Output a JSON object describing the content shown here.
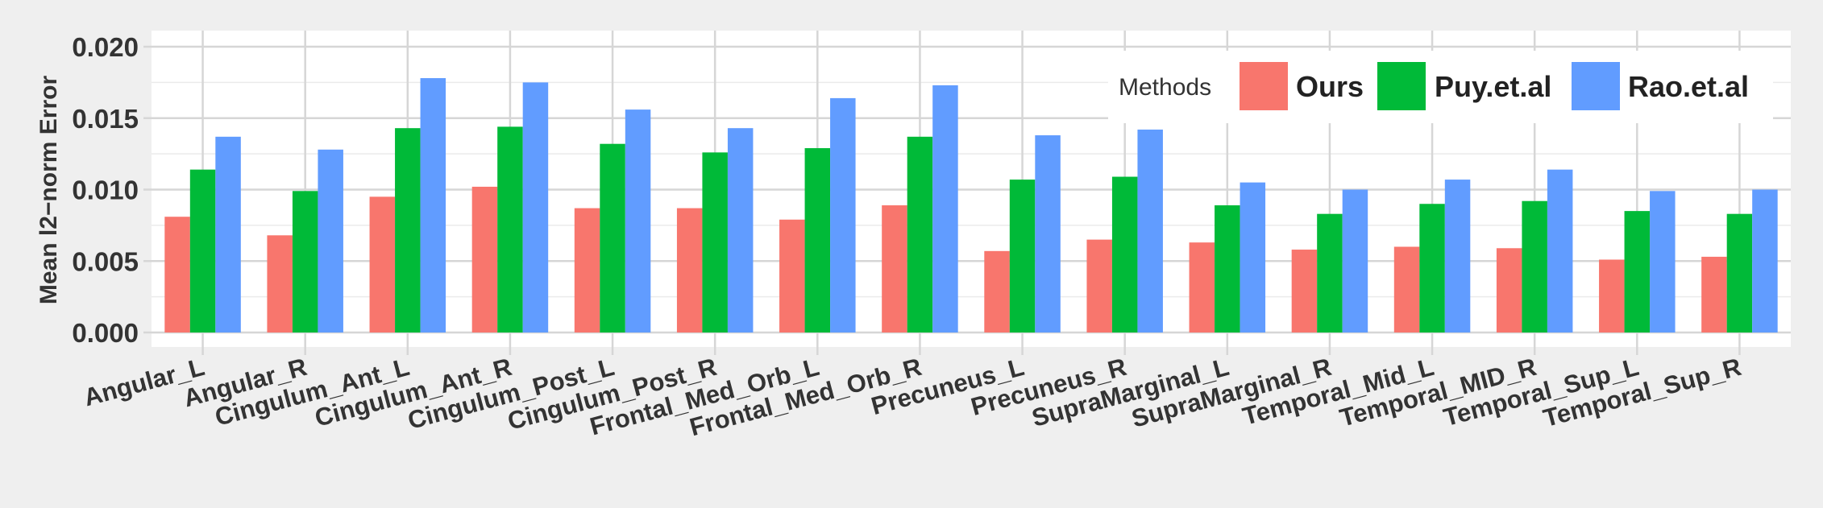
{
  "chart_data": {
    "type": "bar",
    "title": "",
    "xlabel": "",
    "ylabel": "Mean l2−norm Error",
    "ylim": [
      0,
      0.021
    ],
    "yticks": [
      "0.000",
      "0.005",
      "0.010",
      "0.015",
      "0.020"
    ],
    "ytick_values": [
      0,
      0.005,
      0.01,
      0.015,
      0.02
    ],
    "grid": true,
    "legend": {
      "title": "Methods",
      "position": "top-right"
    },
    "categories": [
      "Angular_L",
      "Angular_R",
      "Cingulum_Ant_L",
      "Cingulum_Ant_R",
      "Cingulum_Post_L",
      "Cingulum_Post_R",
      "Frontal_Med_Orb_L",
      "Frontal_Med_Orb_R",
      "Precuneus_L",
      "Precuneus_R",
      "SupraMarginal_L",
      "SupraMarginal_R",
      "Temporal_Mid_L",
      "Temporal_MID_R",
      "Temporal_Sup_L",
      "Temporal_Sup_R"
    ],
    "series": [
      {
        "name": "Ours",
        "color": "#f8766d",
        "values": [
          0.0081,
          0.0068,
          0.0095,
          0.0102,
          0.0087,
          0.0087,
          0.0079,
          0.0089,
          0.0057,
          0.0065,
          0.0063,
          0.0058,
          0.006,
          0.0059,
          0.0051,
          0.0053
        ]
      },
      {
        "name": "Puy.et.al",
        "color": "#00ba38",
        "values": [
          0.0114,
          0.0099,
          0.0143,
          0.0144,
          0.0132,
          0.0126,
          0.0129,
          0.0137,
          0.0107,
          0.0109,
          0.0089,
          0.0083,
          0.009,
          0.0092,
          0.0085,
          0.0083
        ]
      },
      {
        "name": "Rao.et.al",
        "color": "#619cff",
        "values": [
          0.0137,
          0.0128,
          0.0178,
          0.0175,
          0.0156,
          0.0143,
          0.0164,
          0.0173,
          0.0138,
          0.0142,
          0.0105,
          0.01,
          0.0107,
          0.0114,
          0.0099,
          0.01
        ]
      }
    ]
  }
}
